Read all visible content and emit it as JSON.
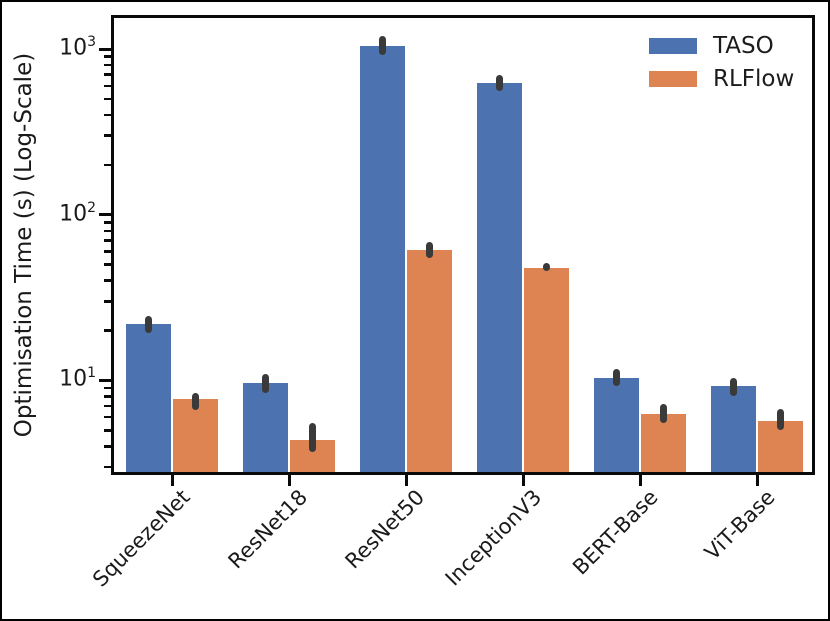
{
  "chart_data": {
    "type": "bar",
    "title": "",
    "xlabel": "",
    "ylabel": "Optimisation Time (s) (Log-Scale)",
    "yscale": "log",
    "grid": false,
    "legend_position": "upper right",
    "background": "#ffffff",
    "spine_color": "#0a0a0a",
    "error_color": "#3a3a3a",
    "ylim": [
      2.8,
      1540
    ],
    "yticks": [
      {
        "value": 10,
        "base": "10",
        "exp": "1"
      },
      {
        "value": 100,
        "base": "10",
        "exp": "2"
      },
      {
        "value": 1000,
        "base": "10",
        "exp": "3"
      }
    ],
    "categories": [
      "SqueezeNet",
      "ResNet18",
      "ResNet50",
      "InceptionV3",
      "BERT-Base",
      "ViT-Base"
    ],
    "series": [
      {
        "name": "TASO",
        "color": "#4c72b0",
        "values": [
          22,
          9.7,
          1050,
          625,
          10.4,
          9.3
        ],
        "err_low": [
          19.3,
          8.4,
          920,
          560,
          9.2,
          8.1
        ],
        "err_high": [
          24.5,
          11.0,
          1194,
          698,
          11.8,
          10.4
        ]
      },
      {
        "name": "RLFlow",
        "color": "#dd8452",
        "values": [
          7.7,
          4.35,
          61,
          48,
          6.3,
          5.7
        ],
        "err_low": [
          6.6,
          3.7,
          54.5,
          45.6,
          5.5,
          5.0
        ],
        "err_high": [
          8.4,
          5.5,
          68,
          50.9,
          7.2,
          6.7
        ]
      }
    ]
  }
}
